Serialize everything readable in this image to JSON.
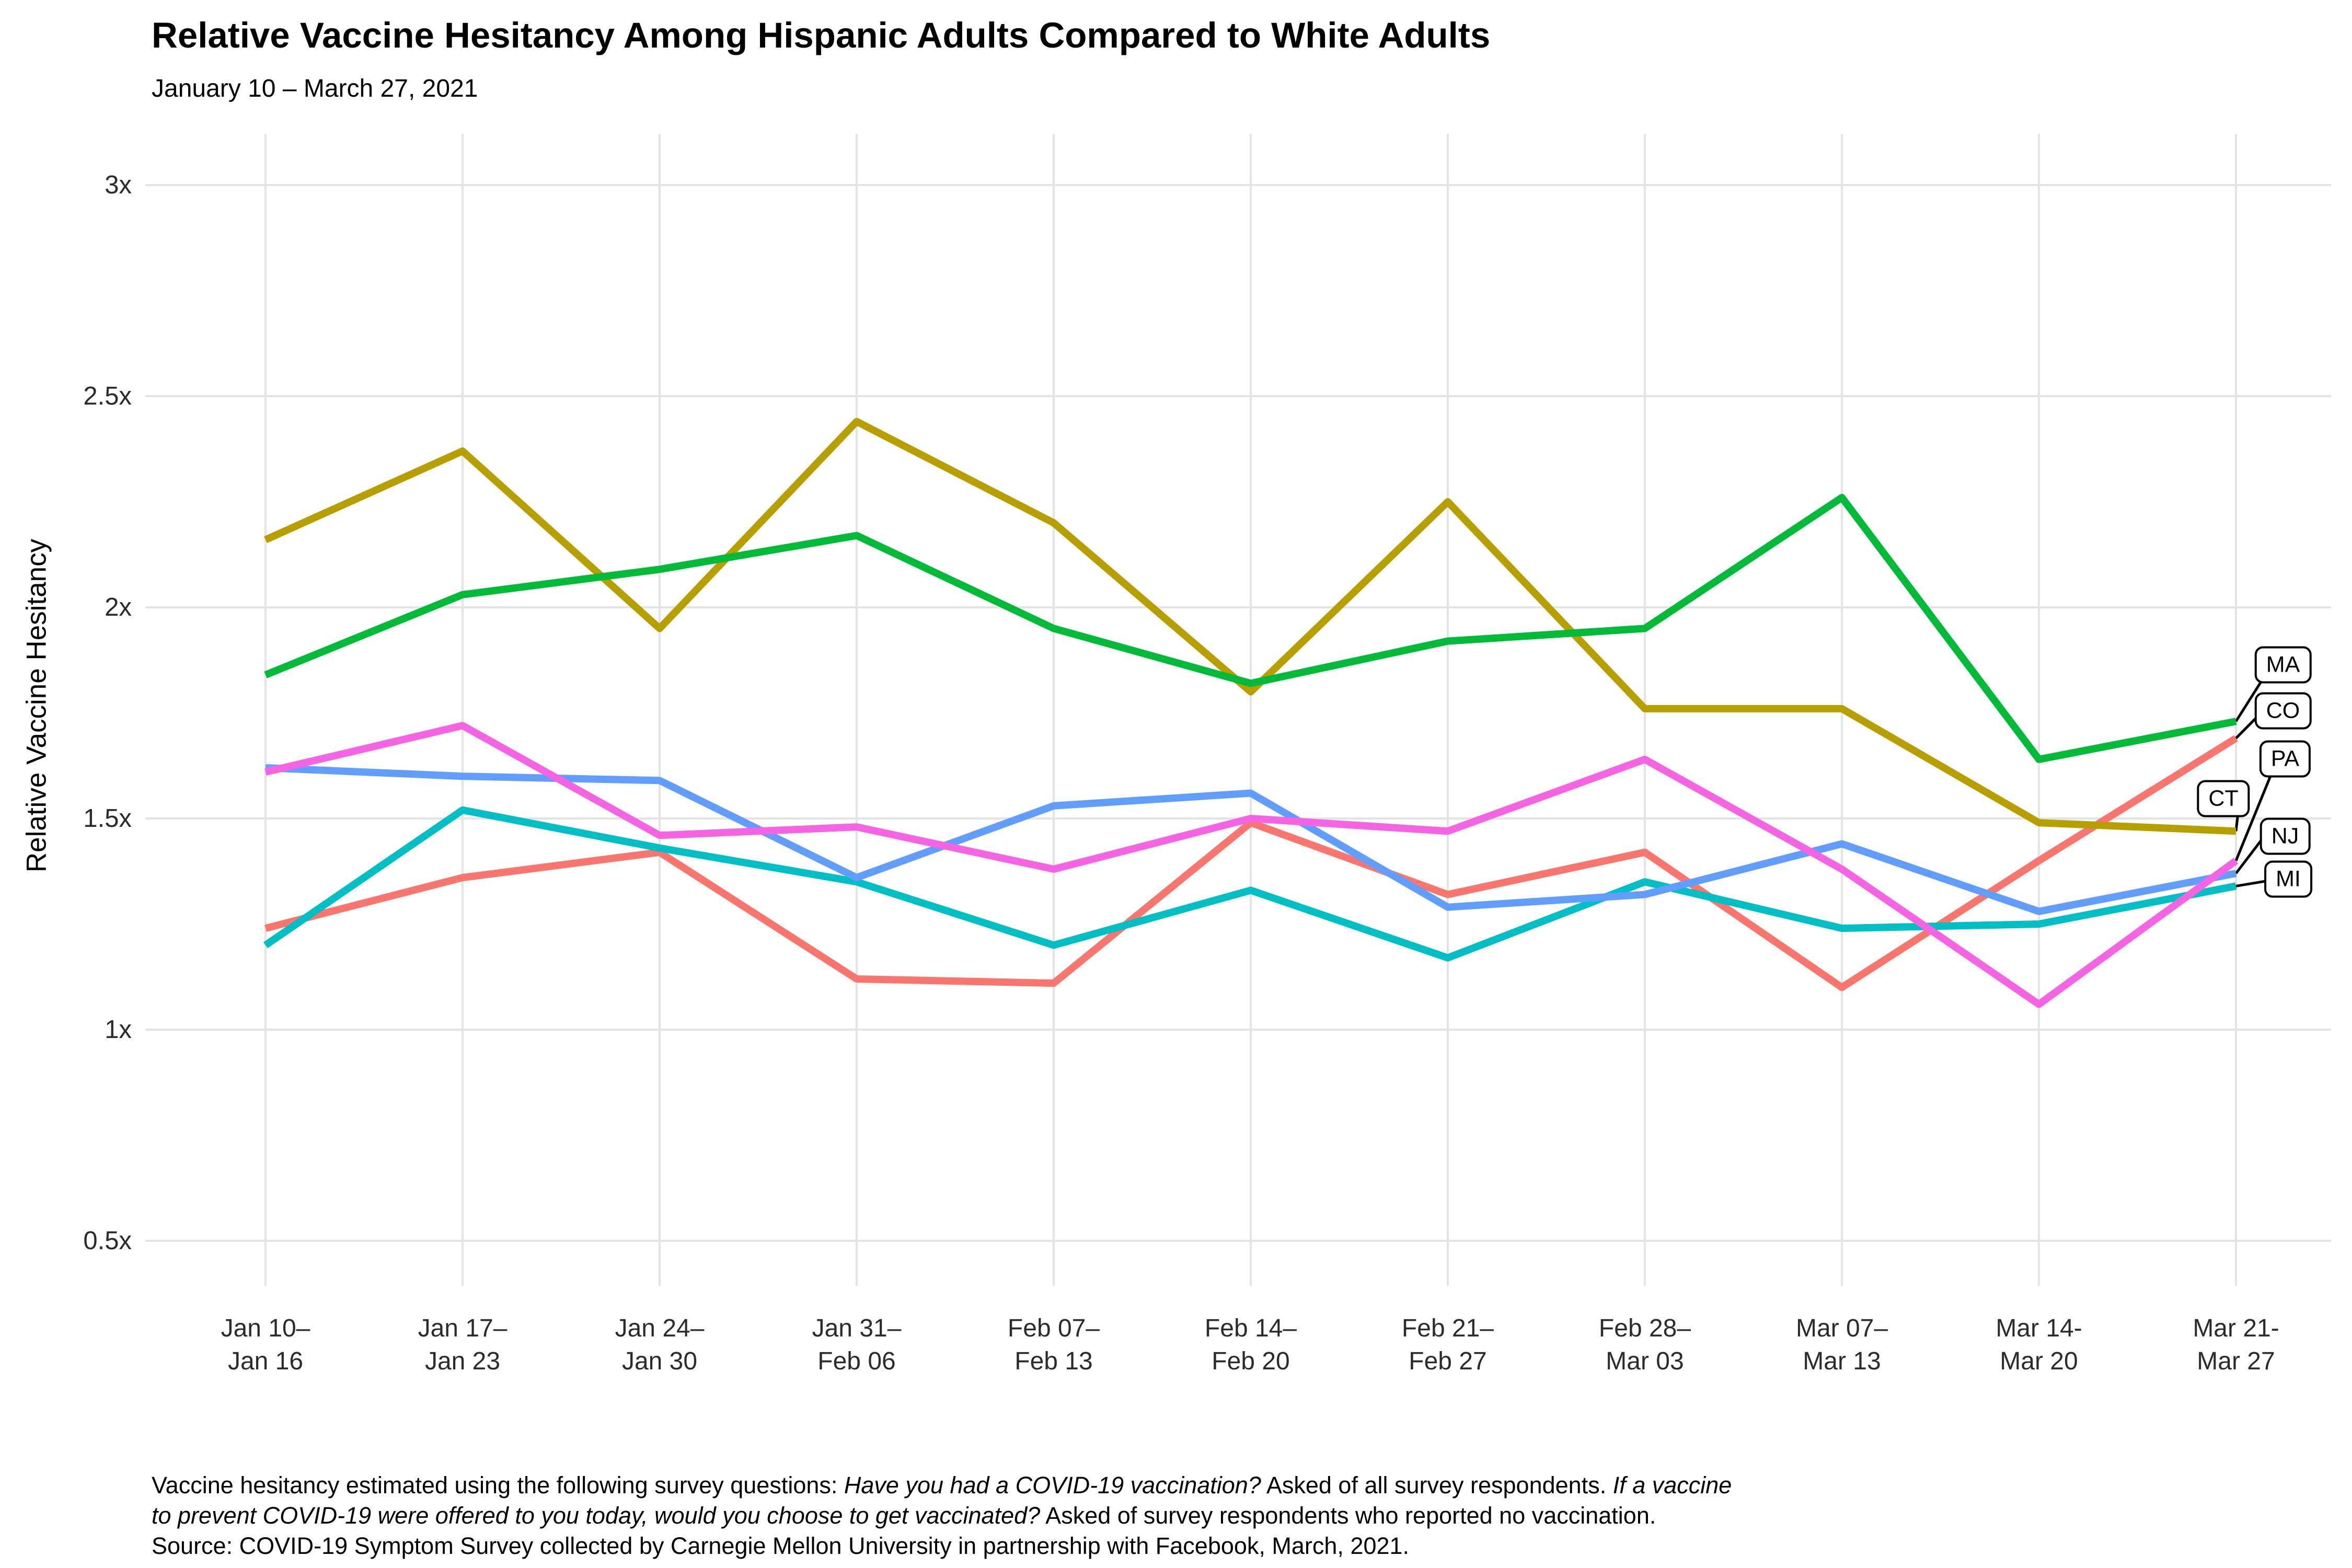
{
  "title": "Relative Vaccine Hesitancy Among Hispanic Adults Compared to White Adults",
  "subtitle": "January 10 – March 27, 2021",
  "y_axis": {
    "title": "Relative Vaccine Hesitancy",
    "ticks": [
      "3x",
      "2.5x",
      "2x",
      "1.5x",
      "1x",
      "0.5x"
    ],
    "tick_values": [
      3,
      2.5,
      2,
      1.5,
      1,
      0.5
    ]
  },
  "x_axis": {
    "labels": [
      [
        "Jan 10–",
        "Jan 16"
      ],
      [
        "Jan 17–",
        "Jan 23"
      ],
      [
        "Jan 24–",
        "Jan 30"
      ],
      [
        "Jan 31–",
        "Feb 06"
      ],
      [
        "Feb 07–",
        "Feb 13"
      ],
      [
        "Feb 14–",
        "Feb 20"
      ],
      [
        "Feb 21–",
        "Feb 27"
      ],
      [
        "Feb 28–",
        "Mar 03"
      ],
      [
        "Mar 07–",
        "Mar 13"
      ],
      [
        "Mar 14-",
        "Mar 20"
      ],
      [
        "Mar 21-",
        "Mar 27"
      ]
    ]
  },
  "chart_data": {
    "type": "line",
    "x": [
      "Jan 10–Jan 16",
      "Jan 17–Jan 23",
      "Jan 24–Jan 30",
      "Jan 31–Feb 06",
      "Feb 07–Feb 13",
      "Feb 14–Feb 20",
      "Feb 21–Feb 27",
      "Feb 28–Mar 03",
      "Mar 07–Mar 13",
      "Mar 14-Mar 20",
      "Mar 21-Mar 27"
    ],
    "title": "Relative Vaccine Hesitancy Among Hispanic Adults Compared to White Adults",
    "subtitle": "January 10 – March 27, 2021",
    "ylabel": "Relative Vaccine Hesitancy",
    "xlabel": "",
    "ylim": [
      0.5,
      3
    ],
    "yticks": [
      0.5,
      1,
      1.5,
      2,
      2.5,
      3
    ],
    "grid": true,
    "legend_position": "right-labels",
    "series": [
      {
        "name": "CO",
        "color": "#F8766D",
        "values": [
          1.24,
          1.36,
          1.42,
          1.12,
          1.11,
          1.49,
          1.32,
          1.42,
          1.1,
          1.4,
          1.69
        ]
      },
      {
        "name": "CT",
        "color": "#B79F00",
        "values": [
          2.16,
          2.37,
          1.95,
          2.44,
          2.2,
          1.8,
          2.25,
          1.76,
          1.76,
          1.49,
          1.47
        ]
      },
      {
        "name": "MA",
        "color": "#00BA38",
        "values": [
          1.84,
          2.03,
          2.09,
          2.17,
          1.95,
          1.82,
          1.92,
          1.95,
          2.26,
          1.64,
          1.73
        ]
      },
      {
        "name": "MI",
        "color": "#00BFC4",
        "values": [
          1.2,
          1.52,
          1.43,
          1.35,
          1.2,
          1.33,
          1.17,
          1.35,
          1.24,
          1.25,
          1.34
        ]
      },
      {
        "name": "NJ",
        "color": "#619CFF",
        "values": [
          1.62,
          1.6,
          1.59,
          1.36,
          1.53,
          1.56,
          1.29,
          1.32,
          1.44,
          1.28,
          1.37
        ]
      },
      {
        "name": "PA",
        "color": "#F564E3",
        "values": [
          1.61,
          1.72,
          1.46,
          1.48,
          1.38,
          1.5,
          1.47,
          1.64,
          1.38,
          1.06,
          1.4
        ]
      }
    ],
    "end_labels": [
      "MA",
      "CO",
      "PA",
      "CT",
      "NJ",
      "MI"
    ]
  },
  "footer": {
    "lines": [
      [
        {
          "t": "Vaccine hesitancy estimated using the following survey questions: ",
          "i": false
        },
        {
          "t": "Have you had a COVID-19 vaccination?",
          "i": true
        },
        {
          "t": " Asked of all survey respondents. ",
          "i": false
        },
        {
          "t": "If a vaccine",
          "i": true
        }
      ],
      [
        {
          "t": "to prevent COVID-19 were offered to you today, would you choose to get vaccinated?",
          "i": true
        },
        {
          "t": " Asked of survey respondents who reported no vaccination.",
          "i": false
        }
      ],
      [
        {
          "t": "Source: COVID-19 Symptom Survey collected by Carnegie Mellon University in partnership with Facebook, March, 2021.",
          "i": false
        }
      ]
    ]
  },
  "colors": {
    "grid": "#E4E4E4",
    "leader_line": "#000000",
    "text": "#000000",
    "tick_text": "#2b2b2b"
  }
}
